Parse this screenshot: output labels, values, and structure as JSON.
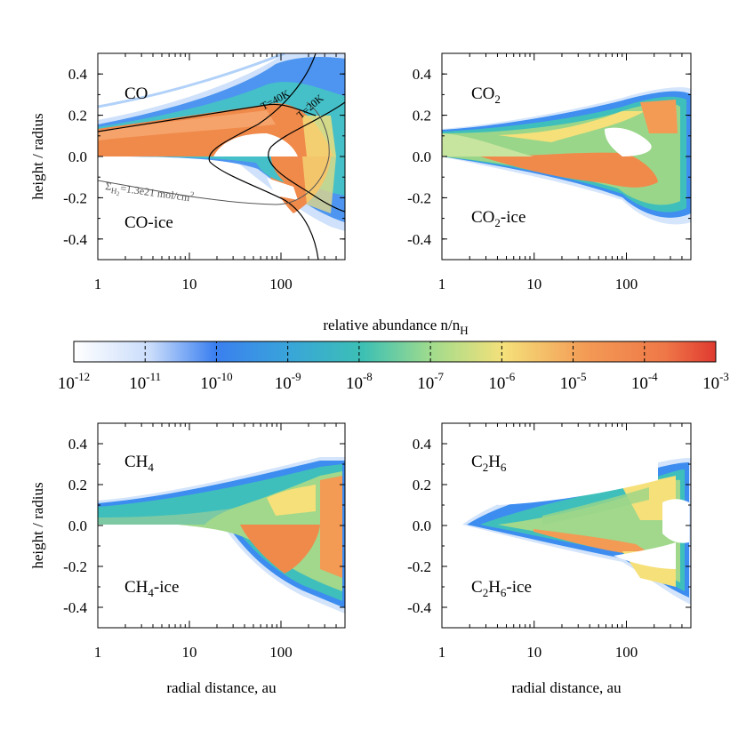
{
  "colorbar": {
    "title": "relative abundance n/n",
    "title_sub": "H",
    "tick_labels": [
      "10",
      "10",
      "10",
      "10",
      "10",
      "10",
      "10",
      "10",
      "10",
      "10"
    ],
    "tick_exponents": [
      "-12",
      "-11",
      "-10",
      "-9",
      "-8",
      "-7",
      "-6",
      "-5",
      "-4",
      "-3"
    ],
    "colors": [
      "#ffffff",
      "#3a86f0",
      "#38b5c9",
      "#8fd6a0",
      "#f5e07a",
      "#f08a4b",
      "#e03a30"
    ]
  },
  "axes": {
    "ylabel": "height / radius",
    "xlabel": "radial distance, au",
    "yticks": [
      "0.4",
      "0.2",
      "0.0",
      "-0.2",
      "-0.4"
    ],
    "xticks": [
      "1",
      "10",
      "100"
    ]
  },
  "panels": [
    {
      "top": "CO",
      "bottom": "CO-ice"
    },
    {
      "top": "CO",
      "top_sub": "2",
      "bottom": "CO",
      "bottom_sub": "2",
      "bottom_rest": "-ice"
    },
    {
      "top": "CH",
      "top_sub": "4",
      "bottom": "CH",
      "bottom_sub": "4",
      "bottom_rest": "-ice"
    },
    {
      "top": "C",
      "top_sub": "2",
      "top_rest": "H",
      "top_sub2": "6",
      "bottom": "C",
      "bottom_sub": "2",
      "bottom_rest": "H",
      "bottom_sub2": "6",
      "bottom_rest2": "-ice"
    }
  ],
  "annotations": {
    "t40": "T=40K",
    "t20": "T=20K",
    "sigma_pre": "Σ",
    "sigma_sub": "H",
    "sigma_subsub": "2",
    "sigma_post": "=1.3e21 mol/cm",
    "sigma_sup": "2"
  },
  "chart_data": [
    {
      "type": "heatmap",
      "title": "CO / CO-ice",
      "xlabel": "",
      "ylabel": "height / radius",
      "xscale": "log",
      "xlim": [
        1,
        500
      ],
      "ylim": [
        -0.5,
        0.5
      ],
      "contours": [
        "T=40K",
        "T=20K",
        "Σ_H2=1.3e21 mol/cm^2"
      ],
      "colorbar_range": [
        1e-12,
        0.001
      ]
    },
    {
      "type": "heatmap",
      "title": "CO2 / CO2-ice",
      "xlabel": "",
      "xscale": "log",
      "xlim": [
        1,
        500
      ],
      "ylim": [
        -0.5,
        0.5
      ],
      "colorbar_range": [
        1e-12,
        0.001
      ]
    },
    {
      "type": "heatmap",
      "title": "CH4 / CH4-ice",
      "xlabel": "radial distance, au",
      "ylabel": "height / radius",
      "xscale": "log",
      "xlim": [
        1,
        500
      ],
      "ylim": [
        -0.5,
        0.5
      ],
      "colorbar_range": [
        1e-12,
        0.001
      ]
    },
    {
      "type": "heatmap",
      "title": "C2H6 / C2H6-ice",
      "xlabel": "radial distance, au",
      "xscale": "log",
      "xlim": [
        1,
        500
      ],
      "ylim": [
        -0.5,
        0.5
      ],
      "colorbar_range": [
        1e-12,
        0.001
      ]
    }
  ]
}
